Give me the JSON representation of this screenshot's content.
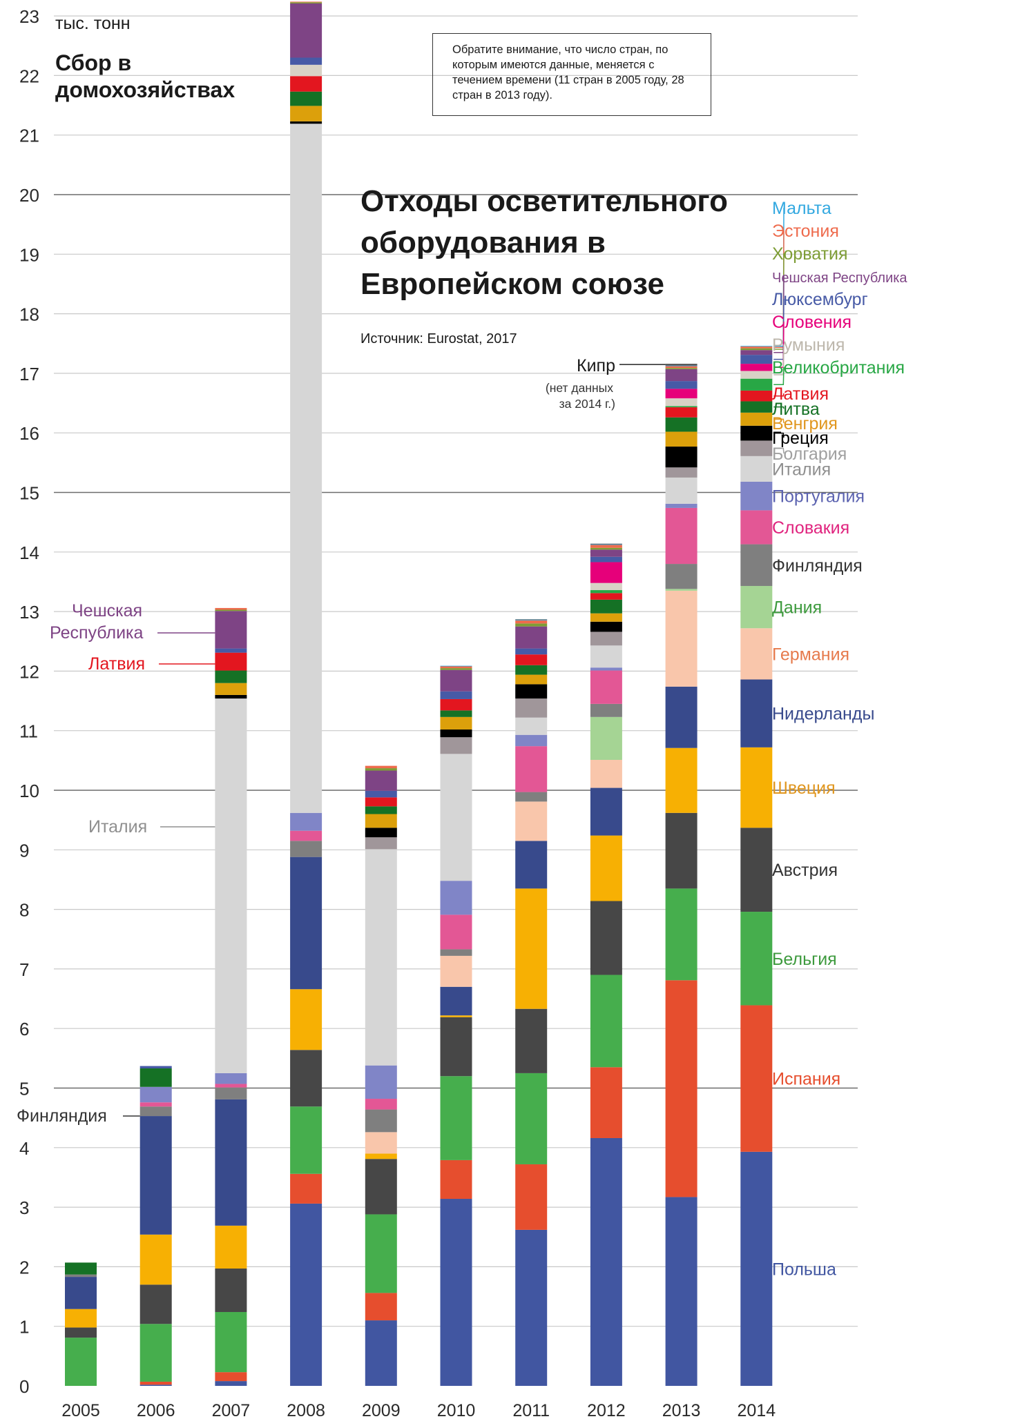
{
  "unit_label": "тыс. тонн",
  "subtitle": "Сбор в домохозяйствах",
  "title": "Отходы осветительного оборудования в Европейском союзе",
  "source": "Источник: Eurostat, 2017",
  "note": "Обратите внимание, что число стран, по которым имеются данные, меняется с течением времени (11 стран в 2005 году, 28 стран в 2013 году).",
  "annotations": {
    "cyprus_label": "Кипр",
    "cyprus_note_line1": "(нет данных",
    "cyprus_note_line2": "за 2014 г.)"
  },
  "colors": {
    "Польша": "#4156a1",
    "Испания": "#e64e2e",
    "Бельгия": "#46ae4d",
    "Австрия": "#474747",
    "Швеция": "#f7b003",
    "Нидерланды": "#384a8c",
    "Германия": "#f9c6ab",
    "Дания": "#a5d494",
    "Финляндия": "#7f7f7f",
    "Словакия": "#e35795",
    "Португалия": "#8085c7",
    "Италия": "#d6d6d6",
    "Болгария": "#a0969a",
    "Греция": "#000000",
    "Венгрия": "#dca00b",
    "Литва": "#157125",
    "Латвия": "#e3161f",
    "Великобритания": "#28a745",
    "Румыния": "#d8d2c6",
    "Словения": "#e6007a",
    "Люксембург": "#475aa6",
    "Чешская Республика": "#7e4485",
    "Хорватия": "#7e9d36",
    "Эстония": "#ee6b4d",
    "Мальта": "#32a8e0",
    "Кипр": "#555555"
  },
  "chart_data": {
    "type": "bar",
    "stacked": true,
    "unit": "тыс. тонн",
    "categories": [
      "2005",
      "2006",
      "2007",
      "2008",
      "2009",
      "2010",
      "2011",
      "2012",
      "2013",
      "2014"
    ],
    "ylim": [
      0,
      23
    ],
    "yticks": [
      0,
      1,
      2,
      3,
      4,
      5,
      6,
      7,
      8,
      9,
      10,
      11,
      12,
      13,
      14,
      15,
      16,
      17,
      18,
      19,
      20,
      21,
      22,
      23
    ],
    "series": [
      {
        "name": "Польша",
        "values": [
          0,
          0.02,
          0.08,
          3.06,
          1.1,
          3.14,
          2.62,
          4.16,
          3.17,
          3.93
        ]
      },
      {
        "name": "Испания",
        "values": [
          0,
          0.05,
          0.15,
          0.5,
          0.46,
          0.65,
          1.1,
          1.19,
          3.64,
          2.46
        ]
      },
      {
        "name": "Бельгия",
        "values": [
          0.81,
          0.97,
          1.01,
          1.13,
          1.32,
          1.41,
          1.53,
          1.55,
          1.54,
          1.57
        ]
      },
      {
        "name": "Австрия",
        "values": [
          0.17,
          0.66,
          0.73,
          0.95,
          0.93,
          0.99,
          1.08,
          1.24,
          1.27,
          1.41
        ]
      },
      {
        "name": "Швеция",
        "values": [
          0.31,
          0.84,
          0.72,
          1.02,
          0.09,
          0.03,
          2.02,
          1.1,
          1.09,
          1.35
        ]
      },
      {
        "name": "Нидерланды",
        "values": [
          0.54,
          1.99,
          2.12,
          2.22,
          0,
          0.48,
          0.8,
          0.8,
          1.03,
          1.14
        ]
      },
      {
        "name": "Германия",
        "values": [
          0,
          0,
          0,
          0,
          0.36,
          0.52,
          0.66,
          0.47,
          1.61,
          0.86
        ]
      },
      {
        "name": "Дания",
        "values": [
          0,
          0,
          0,
          0,
          0,
          0,
          0,
          0.72,
          0.03,
          0.71
        ]
      },
      {
        "name": "Финляндия",
        "values": [
          0.04,
          0.16,
          0.2,
          0.27,
          0.38,
          0.11,
          0.16,
          0.22,
          0.42,
          0.7
        ]
      },
      {
        "name": "Словакия",
        "values": [
          0,
          0.07,
          0.06,
          0.17,
          0.18,
          0.58,
          0.77,
          0.56,
          0.94,
          0.57
        ]
      },
      {
        "name": "Португалия",
        "values": [
          0,
          0.26,
          0.18,
          0.3,
          0.56,
          0.57,
          0.19,
          0.05,
          0.07,
          0.48
        ]
      },
      {
        "name": "Италия",
        "values": [
          0,
          0,
          6.29,
          11.57,
          3.63,
          2.13,
          0.29,
          0.37,
          0.44,
          0.43
        ]
      },
      {
        "name": "Болгария",
        "values": [
          0,
          0,
          0,
          0,
          0.2,
          0.28,
          0.32,
          0.23,
          0.17,
          0.26
        ]
      },
      {
        "name": "Греция",
        "values": [
          0,
          0,
          0.06,
          0.04,
          0.16,
          0.13,
          0.24,
          0.17,
          0.35,
          0.25
        ]
      },
      {
        "name": "Венгрия",
        "values": [
          0,
          0,
          0.2,
          0.26,
          0.23,
          0.21,
          0.16,
          0.14,
          0.25,
          0.22
        ]
      },
      {
        "name": "Литва",
        "values": [
          0.2,
          0.31,
          0.21,
          0.24,
          0.13,
          0.11,
          0.16,
          0.23,
          0.24,
          0.19
        ]
      },
      {
        "name": "Латвия",
        "values": [
          0,
          0,
          0.3,
          0.26,
          0.15,
          0.19,
          0.18,
          0.11,
          0.17,
          0.18
        ]
      },
      {
        "name": "Великобритания",
        "values": [
          0,
          0,
          0,
          0,
          0,
          0,
          0,
          0.05,
          0.02,
          0.2
        ]
      },
      {
        "name": "Румыния",
        "values": [
          0,
          0,
          0,
          0.19,
          0,
          0,
          0,
          0.12,
          0.13,
          0.13
        ]
      },
      {
        "name": "Словения",
        "values": [
          0,
          0,
          0,
          0,
          0,
          0,
          0,
          0.35,
          0.16,
          0.12
        ]
      },
      {
        "name": "Люксембург",
        "values": [
          0,
          0.04,
          0.07,
          0.12,
          0.11,
          0.13,
          0.1,
          0.09,
          0.13,
          0.15
        ]
      },
      {
        "name": "Чешская Республика",
        "values": [
          0,
          0,
          0.63,
          0.91,
          0.34,
          0.36,
          0.37,
          0.12,
          0.2,
          0.08
        ]
      },
      {
        "name": "Хорватия",
        "values": [
          0,
          0,
          0.02,
          0.02,
          0.04,
          0.03,
          0.05,
          0.03,
          0.02,
          0.03
        ]
      },
      {
        "name": "Эстония",
        "values": [
          0,
          0,
          0.03,
          0.01,
          0.04,
          0.03,
          0.05,
          0.05,
          0.03,
          0.03
        ]
      },
      {
        "name": "Мальта",
        "values": [
          0,
          0,
          0,
          0,
          0,
          0.01,
          0.01,
          0.01,
          0.01,
          0.01
        ]
      },
      {
        "name": "Кипр",
        "values": [
          0,
          0,
          0,
          0,
          0,
          0,
          0.01,
          0.01,
          0.03,
          0
        ]
      }
    ],
    "right_labels": [
      {
        "name": "Мальта",
        "color": "#32a8e0"
      },
      {
        "name": "Эстония",
        "color": "#ee6b4d"
      },
      {
        "name": "Хорватия",
        "color": "#7e9d36"
      },
      {
        "name": "Чешская Республика",
        "color": "#7e4485"
      },
      {
        "name": "Люксембург",
        "color": "#475aa6"
      },
      {
        "name": "Словения",
        "color": "#e6007a"
      },
      {
        "name": "Румыния",
        "color": "#bdb7ac"
      },
      {
        "name": "Великобритания",
        "color": "#28a745"
      },
      {
        "name": "Латвия",
        "color": "#e3161f"
      },
      {
        "name": "Литва",
        "color": "#157125"
      },
      {
        "name": "Венгрия",
        "color": "#e0961e"
      },
      {
        "name": "Греция",
        "color": "#000000"
      },
      {
        "name": "Болгария",
        "color": "#a0a0a0"
      },
      {
        "name": "Италия",
        "color": "#8f8f8f"
      },
      {
        "name": "Португалия",
        "color": "#5c63b0"
      },
      {
        "name": "Словакия",
        "color": "#e0237e"
      },
      {
        "name": "Финляндия",
        "color": "#333333"
      },
      {
        "name": "Дания",
        "color": "#3d9a3d"
      },
      {
        "name": "Германия",
        "color": "#e67a4c"
      },
      {
        "name": "Нидерланды",
        "color": "#384a8c"
      },
      {
        "name": "Швеция",
        "color": "#e0961e"
      },
      {
        "name": "Австрия",
        "color": "#333333"
      },
      {
        "name": "Бельгия",
        "color": "#3d9a3d"
      },
      {
        "name": "Испания",
        "color": "#e64e2e"
      },
      {
        "name": "Польша",
        "color": "#4156a1"
      }
    ],
    "left_labels": [
      {
        "text": "Чешская",
        "color": "#7e4485"
      },
      {
        "text": "Республика",
        "color": "#7e4485"
      },
      {
        "text": "Латвия",
        "color": "#e3161f"
      },
      {
        "text": "Италия",
        "color": "#8f8f8f"
      },
      {
        "text": "Финляндия",
        "color": "#333333"
      }
    ]
  }
}
